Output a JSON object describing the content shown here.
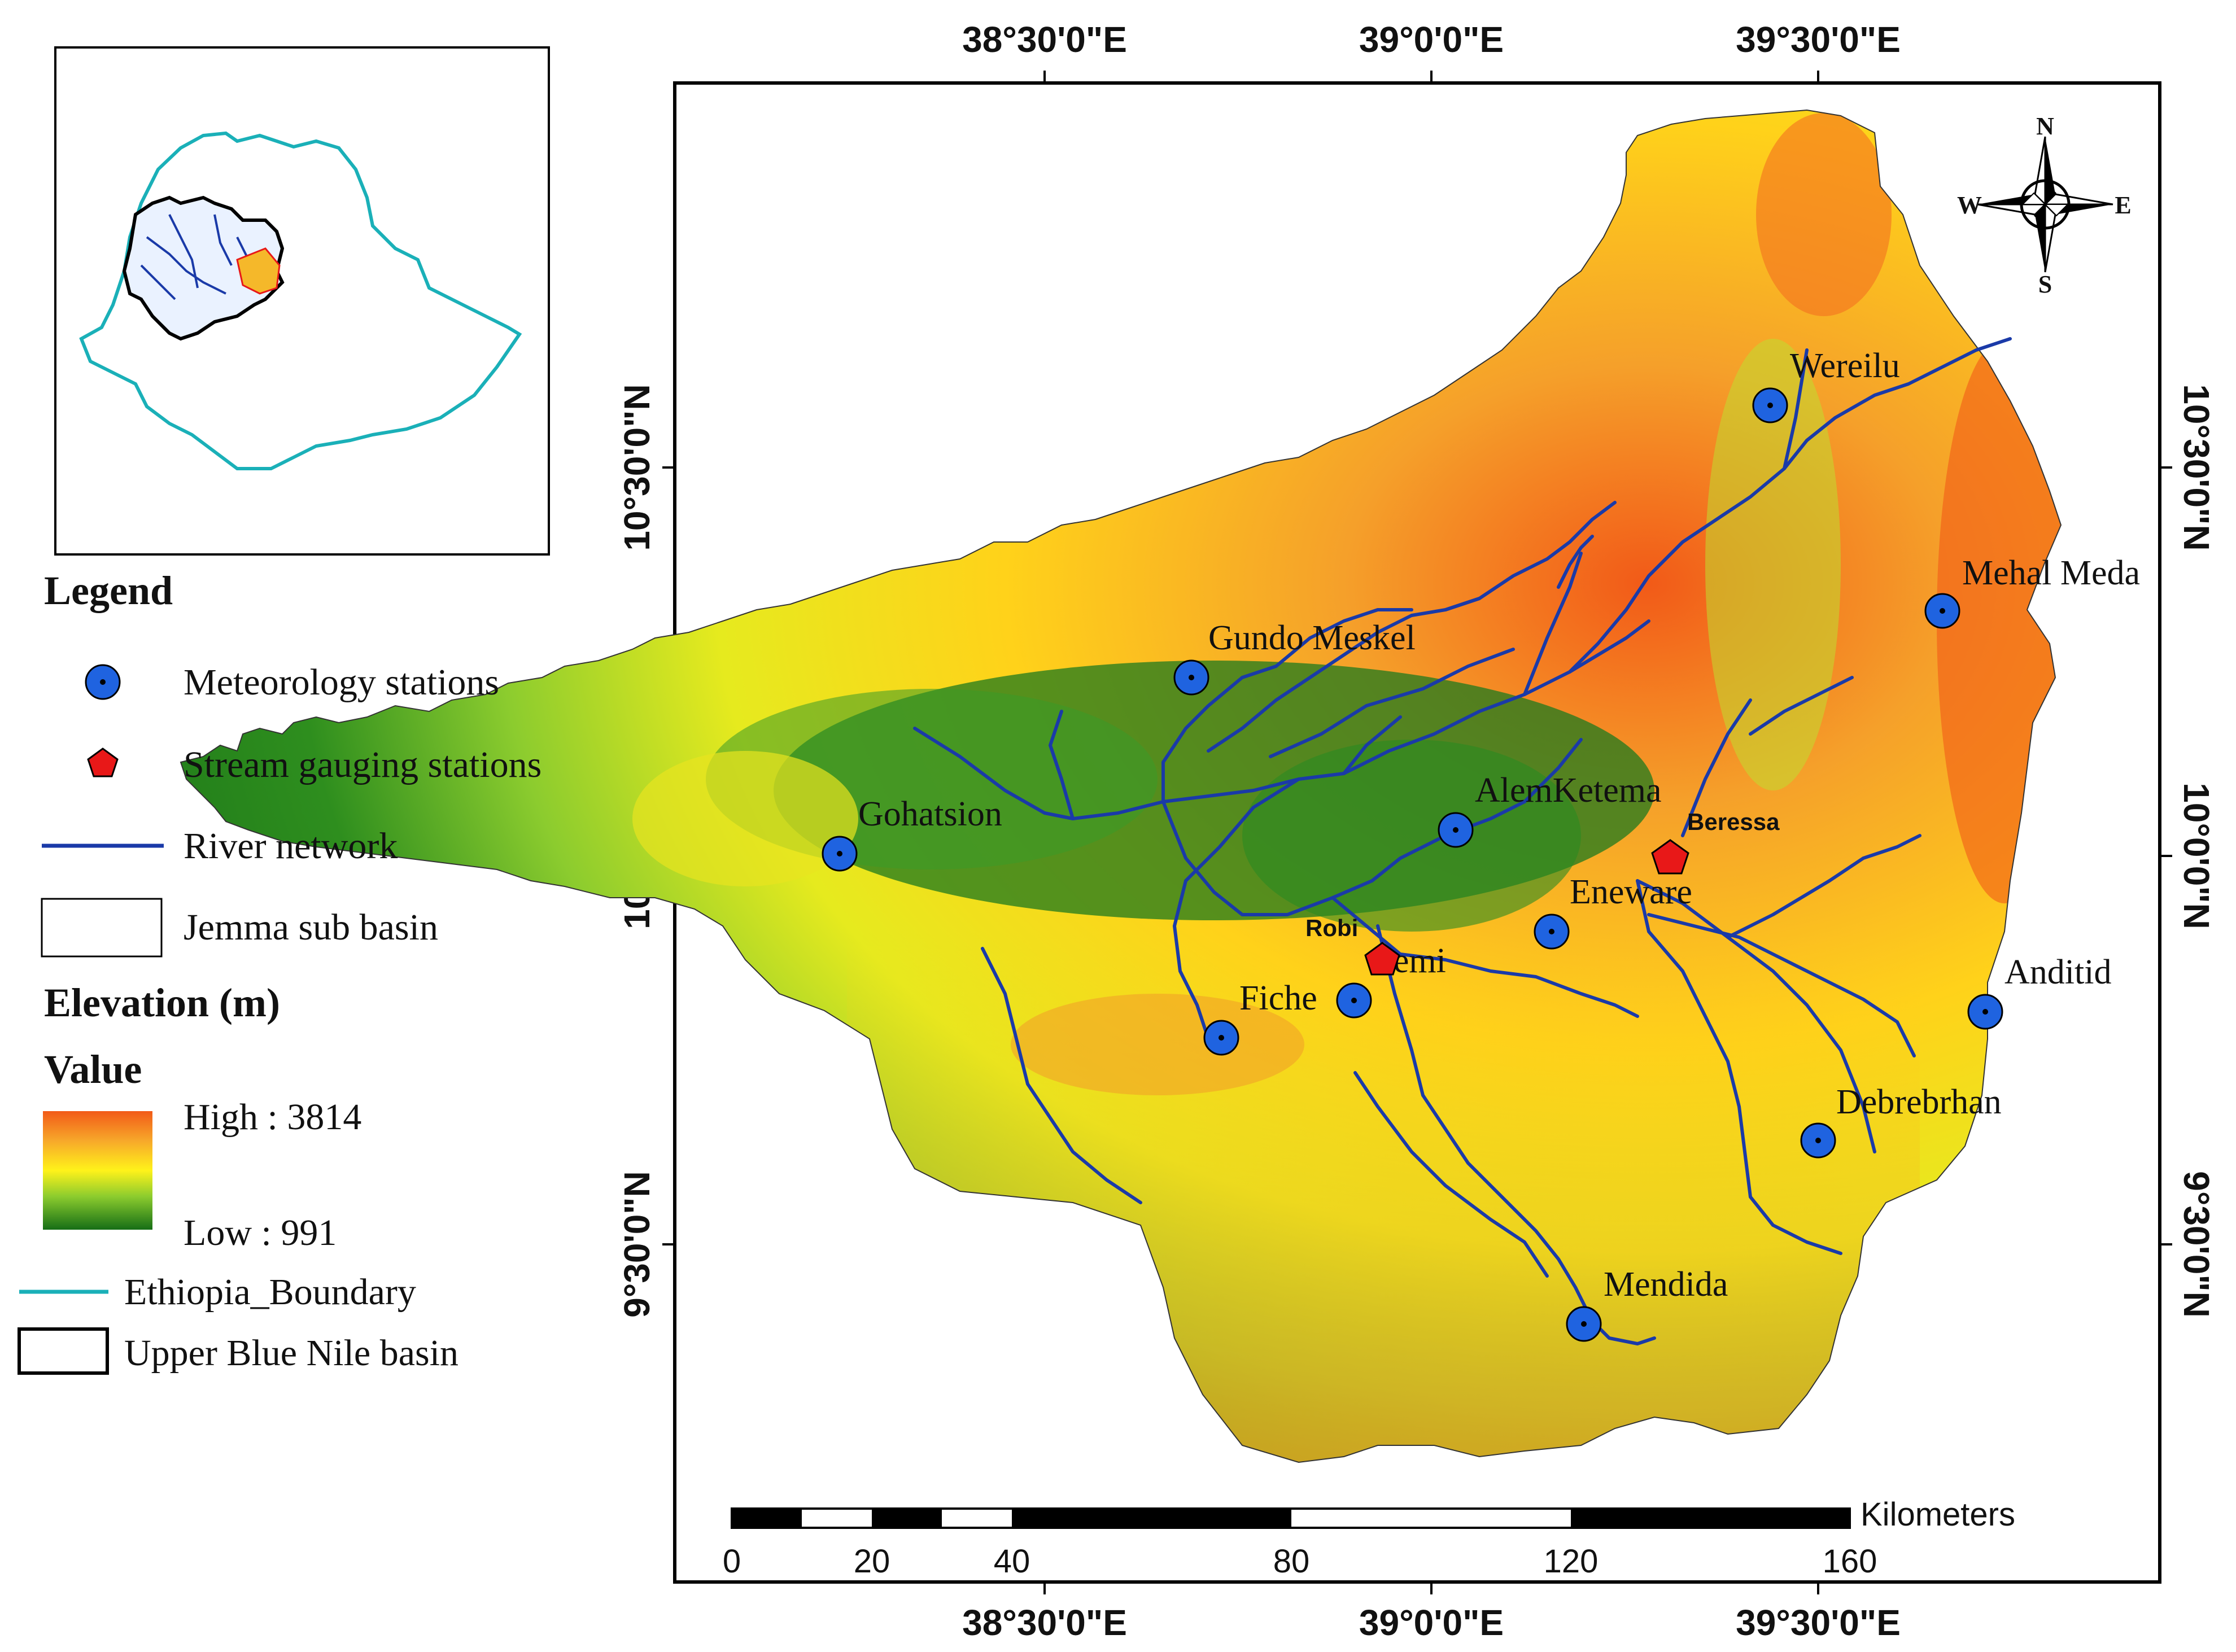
{
  "map": {
    "top_lon_labels": [
      "38°30'0\"E",
      "39°0'0\"E",
      "39°30'0\"E"
    ],
    "bottom_lon_labels": [
      "38°30'0\"E",
      "39°0'0\"E",
      "39°30'0\"E"
    ],
    "left_lat_labels": [
      "10°30'0\"N",
      "10°0'0\"N",
      "9°30'0\"N"
    ],
    "right_lat_labels": [
      "10°30'0\"N",
      "10°0'0\"N",
      "9°30'0\"N"
    ],
    "meteorology_stations": [
      {
        "name": "Wereilu"
      },
      {
        "name": "Mehal Meda"
      },
      {
        "name": "Gundo Meskel"
      },
      {
        "name": "Gohatsion"
      },
      {
        "name": "AlemKetema"
      },
      {
        "name": "Eneware"
      },
      {
        "name": "Lemi"
      },
      {
        "name": "Fiche"
      },
      {
        "name": "Anditid"
      },
      {
        "name": "Debrebrhan"
      },
      {
        "name": "Mendida"
      }
    ],
    "gauging_stations": [
      {
        "name": "Beressa"
      },
      {
        "name": "Robi"
      }
    ],
    "compass": {
      "n": "N",
      "s": "S",
      "e": "E",
      "w": "W"
    },
    "scale_bar": {
      "unit": "Kilometers",
      "ticks": [
        "0",
        "20",
        "40",
        "80",
        "120",
        "160"
      ]
    },
    "colors": {
      "elev_high": "#f26a1f",
      "elev_mid": "#ffe600",
      "elev_low": "#1e7a1e",
      "river": "#1a3aa8",
      "station_fill": "#1f63e0",
      "gauge_fill": "#e81818",
      "ethiopia_boundary": "#1ab0b8"
    }
  },
  "legend": {
    "title": "Legend",
    "items": {
      "meteorology": "Meteorology stations",
      "gauging": "Stream gauging stations",
      "river": "River network",
      "subbasin": "Jemma sub basin"
    },
    "elevation_title": "Elevation (m)",
    "value_label": "Value",
    "high": "High : 3814",
    "low": "Low : 991",
    "ethiopia_boundary": "Ethiopia_Boundary",
    "upper_blue_nile": "Upper Blue Nile basin"
  }
}
